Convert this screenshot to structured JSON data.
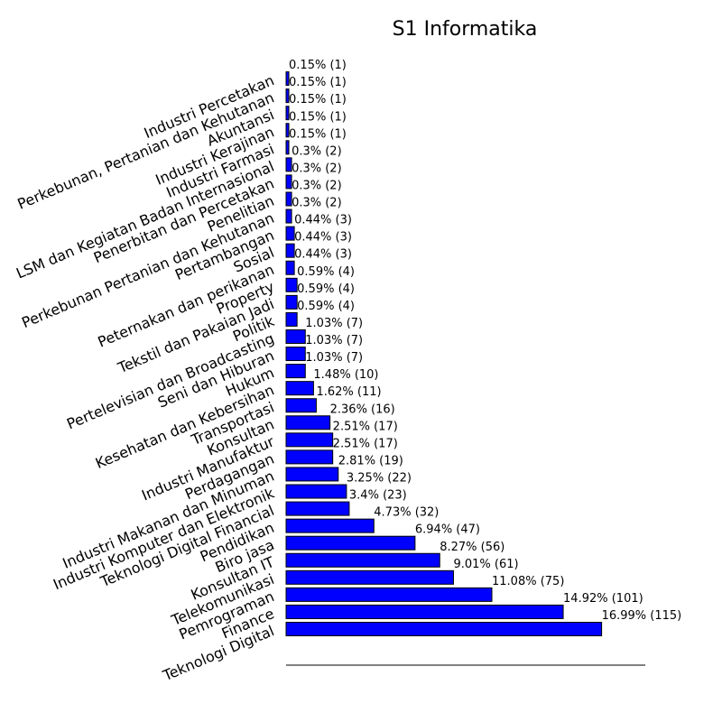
{
  "chart_data": {
    "type": "bar",
    "orientation": "horizontal",
    "title": "S1 Informatika",
    "xlabel": "",
    "ylabel": "",
    "grid": false,
    "bar_color": "#0000ff",
    "bar_edge_color": "#000000",
    "categories": [
      "Teknologi Digital",
      "Finance",
      "Pemrograman",
      "Telekomunikasi",
      "Konsultan IT",
      "Biro jasa",
      "Pendidikan",
      "Teknologi Digital Financial",
      "Industri Komputer dan Elektronik",
      "Industri Makanan dan Minuman",
      "Perdagangan",
      "Industri Manufaktur",
      "Konsultan",
      "Transportasi",
      "Kesehatan dan Kebersihan",
      "Hukum",
      "Seni dan Hiburan",
      "Pertelevisian dan Broadcasting",
      "Politik",
      "Tekstil dan Pakaian Jadi",
      "Property",
      "Peternakan dan perikanan",
      "Sosial",
      "Pertambangan",
      "Perkebunan Pertanian dan Kehutanan",
      "Penelitian",
      "Penerbitan dan Percetakan",
      "LSM dan Kegiatan Badan Internasional",
      "Industri Farmasi",
      "Industri Kerajinan",
      "Akuntansi",
      "Perkebunan, Pertanian dan Kehutanan",
      "Industri Percetakan"
    ],
    "values": [
      115,
      101,
      75,
      61,
      56,
      47,
      32,
      23,
      22,
      19,
      17,
      17,
      16,
      11,
      10,
      7,
      7,
      7,
      4,
      4,
      4,
      3,
      3,
      3,
      2,
      2,
      2,
      2,
      1,
      1,
      1,
      1,
      1
    ],
    "data_labels": [
      "16.99% (115)",
      "14.92% (101)",
      "11.08% (75)",
      "9.01% (61)",
      "8.27% (56)",
      "6.94% (47)",
      "4.73% (32)",
      "3.4% (23)",
      "3.25% (22)",
      "2.81% (19)",
      "2.51% (17)",
      "2.51% (17)",
      "2.36% (16)",
      "1.62% (11)",
      "1.48% (10)",
      "1.03% (7)",
      "1.03% (7)",
      "1.03% (7)",
      "0.59% (4)",
      "0.59% (4)",
      "0.59% (4)",
      "0.44% (3)",
      "0.44% (3)",
      "0.44% (3)",
      "0.3% (2)",
      "0.3% (2)",
      "0.3% (2)",
      "0.3% (2)",
      "0.15% (1)",
      "0.15% (1)",
      "0.15% (1)",
      "0.15% (1)",
      "0.15% (1)"
    ],
    "tick_labels_shown": [
      "Teknologi Digital",
      "Finance",
      "Pemrograman",
      "Telekomunikasi",
      "Konsultan IT",
      "Biro jasa",
      "Pendidikan",
      "Teknologi Digital Financial",
      "Industri Komputer dan Elektronik",
      "Industri Makanan dan Minuman",
      "Perdagangan",
      "Industri Manufaktur",
      "Konsultan",
      "Transportasi",
      "Kesehatan dan Kebersihan",
      "Hukum",
      "Seni dan Hiburan",
      "Pertelevisian dan Broadcasting",
      "Politik",
      "Tekstil dan Pakaian Jadi",
      "Property",
      "Peternakan dan perikanan",
      "Sosial",
      "Pertambangan",
      "Perkebunan Pertanian dan Kehutanan",
      "Penelitian",
      "Penerbitan dan Percetakan",
      "LSM dan Kegiatan Badan Internasional",
      "Industri Farmasi",
      "Industri Kerajinan",
      "Akuntansi",
      "Perkebunan, Pertanian dan Kehutanan",
      "Industri Percetakan"
    ],
    "xlim": [
      0,
      128
    ]
  }
}
